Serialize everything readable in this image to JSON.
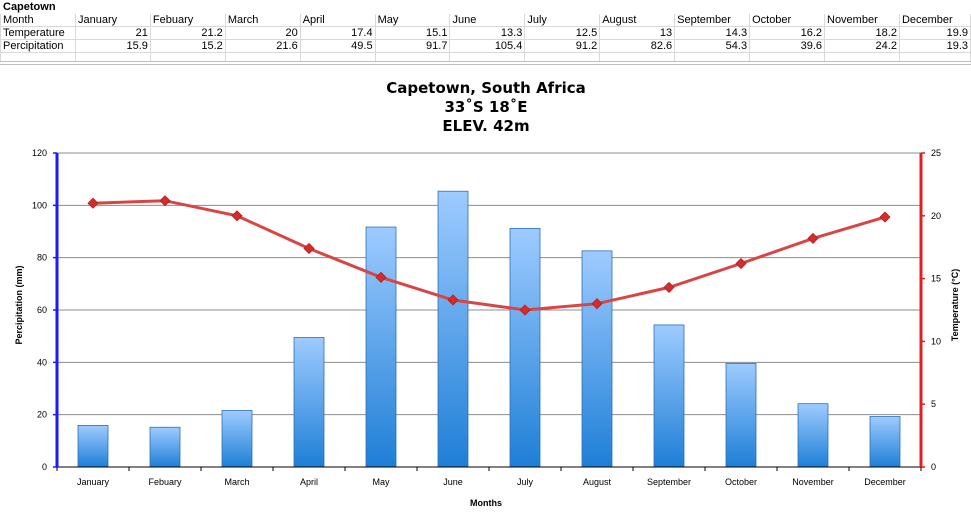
{
  "sheet": {
    "title": "Capetown",
    "rows": [
      {
        "label": "Month",
        "cells": [
          "January",
          "Febuary",
          "March",
          "April",
          "May",
          "June",
          "July",
          "August",
          "September",
          "October",
          "November",
          "December"
        ]
      },
      {
        "label": "Temperature",
        "cells": [
          "21",
          "21.2",
          "20",
          "17.4",
          "15.1",
          "13.3",
          "12.5",
          "13",
          "14.3",
          "16.2",
          "18.2",
          "19.9"
        ]
      },
      {
        "label": "Percipitation",
        "cells": [
          "15.9",
          "15.2",
          "21.6",
          "49.5",
          "91.7",
          "105.4",
          "91.2",
          "82.6",
          "54.3",
          "39.6",
          "24.2",
          "19.3"
        ]
      }
    ]
  },
  "chart_data": {
    "type": "bar",
    "title_lines": [
      "Capetown, South Africa",
      "33˚S 18˚E",
      "ELEV. 42m"
    ],
    "categories": [
      "January",
      "Febuary",
      "March",
      "April",
      "May",
      "June",
      "July",
      "August",
      "September",
      "October",
      "November",
      "December"
    ],
    "series": [
      {
        "name": "Percipitation",
        "type": "bar",
        "axis": "left",
        "values": [
          15.9,
          15.2,
          21.6,
          49.5,
          91.7,
          105.4,
          91.2,
          82.6,
          54.3,
          39.6,
          24.2,
          19.3
        ]
      },
      {
        "name": "Temperature",
        "type": "line",
        "axis": "right",
        "values": [
          21,
          21.2,
          20,
          17.4,
          15.1,
          13.3,
          12.5,
          13,
          14.3,
          16.2,
          18.2,
          19.9
        ]
      }
    ],
    "xlabel": "Months",
    "ylabel_left": "Percipitation (mm)",
    "ylabel_right": "Temperature (°C)",
    "ylim_left": [
      0,
      120
    ],
    "ylim_right": [
      0,
      25
    ],
    "yticks_left": [
      0,
      20,
      40,
      60,
      80,
      100,
      120
    ],
    "yticks_right": [
      0,
      5,
      10,
      15,
      20,
      25
    ],
    "grid": true,
    "legend": "none",
    "colors": {
      "bar_top": "#9ecbff",
      "bar_bottom": "#1e7fd6",
      "bar_stroke": "#2f6fb8",
      "line": "#d94545",
      "marker": "#d62b2b",
      "left_axis": "#1a1aff",
      "right_axis": "#e02020",
      "grid": "#8c8c8c"
    }
  }
}
